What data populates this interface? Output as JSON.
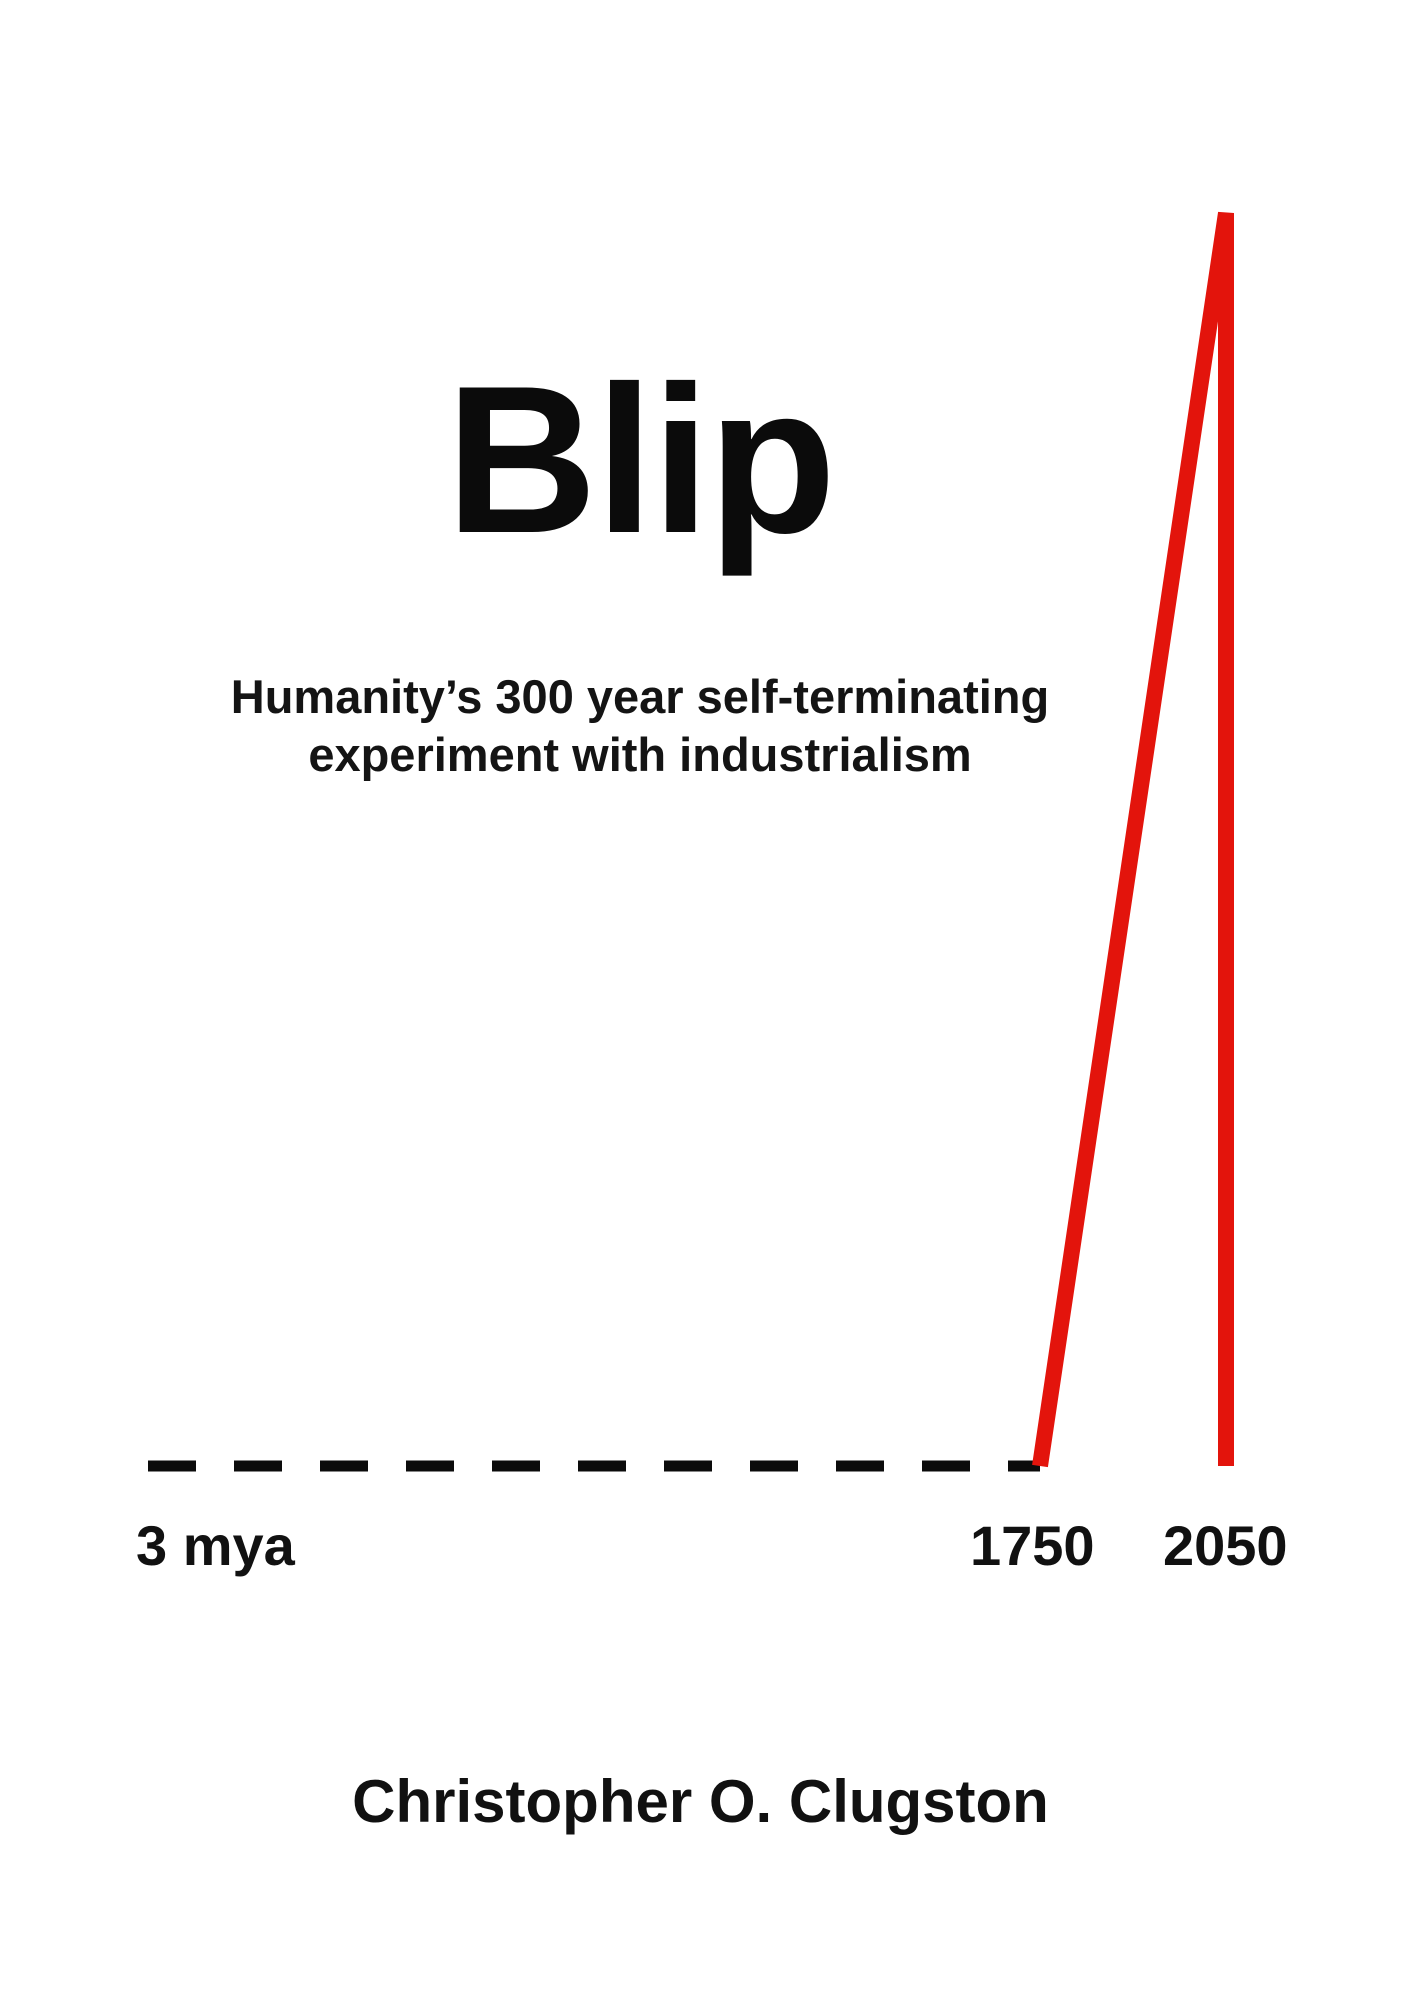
{
  "title": "Blip",
  "subtitle": {
    "line1": "Humanity’s 300 year self-terminating",
    "line2": "experiment with industrialism"
  },
  "timeline": {
    "start_label": "3 mya",
    "mid_label": "1750",
    "end_label": "2050"
  },
  "author": "Christopher O. Clugston",
  "colors": {
    "background": "#ffffff",
    "text": "#111111",
    "spike": "#e3140c",
    "baseline": "#0b0b0b"
  }
}
